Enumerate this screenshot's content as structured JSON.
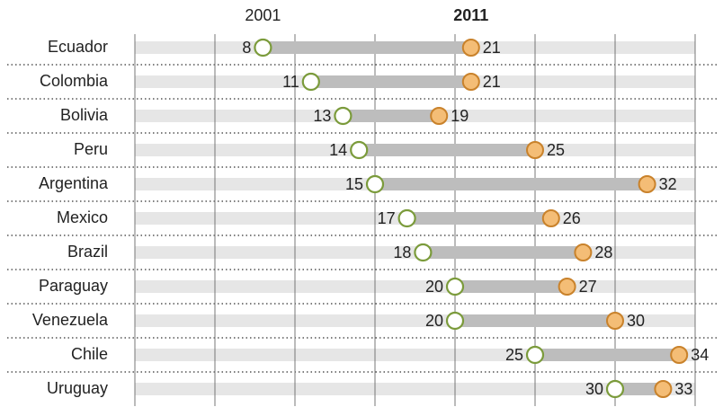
{
  "chart_data": {
    "type": "dumbbell",
    "categories": [
      "Ecuador",
      "Colombia",
      "Bolivia",
      "Peru",
      "Argentina",
      "Mexico",
      "Brazil",
      "Paraguay",
      "Venezuela",
      "Chile",
      "Uruguay"
    ],
    "series": [
      {
        "name": "2001",
        "color": "#7b9b3b",
        "values": [
          8,
          11,
          13,
          14,
          15,
          17,
          18,
          20,
          20,
          25,
          30
        ]
      },
      {
        "name": "2011",
        "color": "#f4bd76",
        "values": [
          21,
          21,
          19,
          25,
          32,
          26,
          28,
          27,
          30,
          34,
          33
        ]
      }
    ],
    "xlim": [
      0,
      35
    ],
    "xticks": [
      0,
      5,
      10,
      15,
      20,
      25,
      30,
      35
    ],
    "grid": true
  }
}
